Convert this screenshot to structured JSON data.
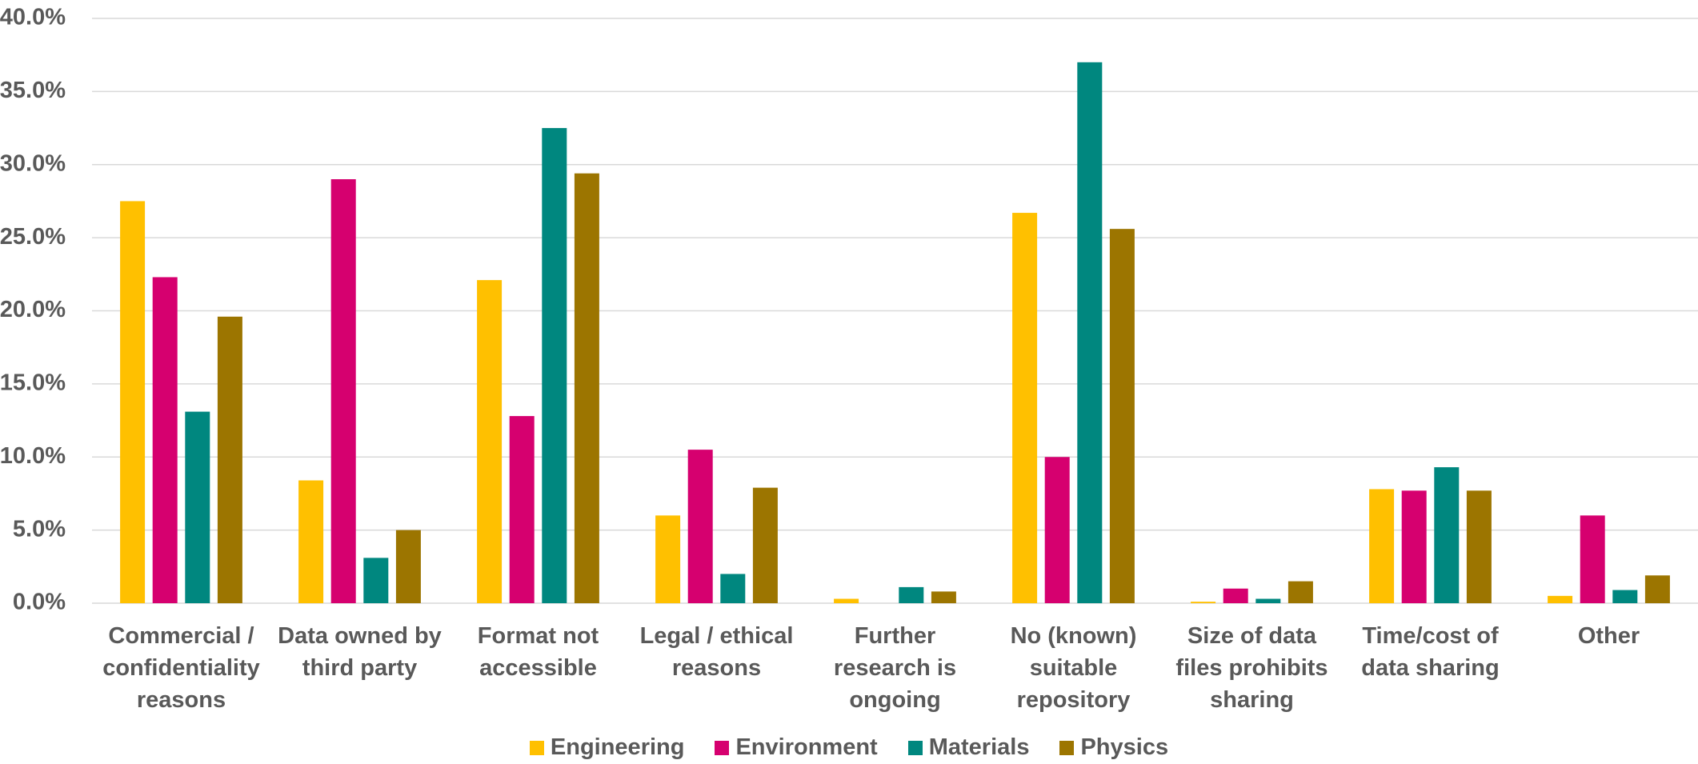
{
  "chart_data": {
    "type": "bar",
    "categories": [
      "Commercial / confidentiality reasons",
      "Data owned by third party",
      "Format not accessible",
      "Legal / ethical reasons",
      "Further research is ongoing",
      "No (known) suitable repository",
      "Size of data files prohibits sharing",
      "Time/cost of data sharing",
      "Other"
    ],
    "series": [
      {
        "name": "Engineering",
        "color": "#FFC000",
        "values": [
          27.5,
          8.4,
          22.1,
          6.0,
          0.3,
          26.7,
          0.1,
          7.8,
          0.5
        ]
      },
      {
        "name": "Environment",
        "color": "#D6006F",
        "values": [
          22.3,
          29.0,
          12.8,
          10.5,
          0,
          10.0,
          1.0,
          7.7,
          6.0
        ]
      },
      {
        "name": "Materials",
        "color": "#00877F",
        "values": [
          13.1,
          3.1,
          32.5,
          2.0,
          1.1,
          37.0,
          0.3,
          9.3,
          0.9
        ]
      },
      {
        "name": "Physics",
        "color": "#9C7500",
        "values": [
          19.6,
          5.0,
          29.4,
          7.9,
          0.8,
          25.6,
          1.5,
          7.7,
          1.9
        ]
      }
    ],
    "ylim": [
      0,
      40
    ],
    "yticks": [
      {
        "value": 0,
        "label": "0.0%"
      },
      {
        "value": 5,
        "label": "5.0%"
      },
      {
        "value": 10,
        "label": "10.0%"
      },
      {
        "value": 15,
        "label": "15.0%"
      },
      {
        "value": 20,
        "label": "20.0%"
      },
      {
        "value": 25,
        "label": "25.0%"
      },
      {
        "value": 30,
        "label": "30.0%"
      },
      {
        "value": 35,
        "label": "35.0%"
      },
      {
        "value": 40,
        "label": "40.0%"
      }
    ],
    "grid": true,
    "legend": "bottom"
  }
}
